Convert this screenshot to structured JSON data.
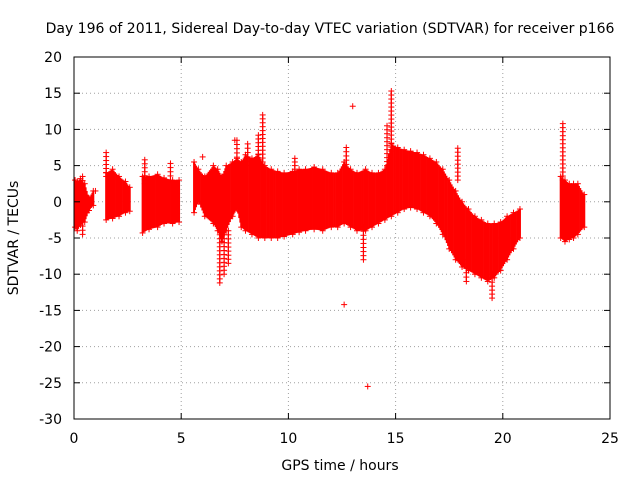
{
  "chart_data": {
    "type": "scatter",
    "title": "Day 196 of 2011, Sidereal Day-to-day VTEC variation (SDTVAR) for receiver p166",
    "xlabel": "GPS time / hours",
    "ylabel": "SDTVAR / TECUs",
    "xlim": [
      0,
      25
    ],
    "ylim": [
      -30,
      20
    ],
    "xticks": [
      0,
      5,
      10,
      15,
      20,
      25
    ],
    "yticks": [
      -30,
      -25,
      -20,
      -15,
      -10,
      -5,
      0,
      5,
      10,
      15,
      20
    ],
    "grid": true,
    "marker": "+",
    "series_color": "#ff0000",
    "band_envelope": [
      [
        0.05,
        -3.5,
        3.0
      ],
      [
        0.15,
        -4.0,
        2.8
      ],
      [
        0.3,
        -3.2,
        3.2
      ],
      [
        0.5,
        -2.8,
        2.5
      ],
      [
        0.7,
        -1.2,
        0.5
      ],
      [
        0.9,
        -0.5,
        1.5
      ],
      [
        1.5,
        -2.5,
        4.0
      ],
      [
        1.8,
        -2.3,
        4.5
      ],
      [
        2.1,
        -2.0,
        3.5
      ],
      [
        2.4,
        -1.5,
        2.8
      ],
      [
        2.6,
        -1.3,
        2.0
      ],
      [
        3.2,
        -4.3,
        3.5
      ],
      [
        3.5,
        -3.8,
        3.5
      ],
      [
        3.9,
        -3.5,
        3.8
      ],
      [
        4.2,
        -3.0,
        3.3
      ],
      [
        4.6,
        -3.0,
        3.0
      ],
      [
        4.9,
        -2.8,
        3.0
      ],
      [
        5.6,
        -1.5,
        5.5
      ],
      [
        5.8,
        0.0,
        4.5
      ],
      [
        6.1,
        -2.0,
        3.5
      ],
      [
        6.5,
        -3.0,
        5.0
      ],
      [
        6.7,
        -4.0,
        4.5
      ],
      [
        6.9,
        -5.5,
        3.5
      ],
      [
        7.1,
        -4.0,
        5.0
      ],
      [
        7.4,
        -2.0,
        5.5
      ],
      [
        7.6,
        -1.0,
        6.0
      ],
      [
        7.8,
        -3.5,
        5.5
      ],
      [
        8.0,
        -4.0,
        6.5
      ],
      [
        8.3,
        -4.5,
        6.0
      ],
      [
        8.6,
        -5.0,
        6.5
      ],
      [
        8.9,
        -5.0,
        5.0
      ],
      [
        9.2,
        -5.0,
        4.5
      ],
      [
        9.5,
        -5.0,
        4.2
      ],
      [
        9.8,
        -4.8,
        4.0
      ],
      [
        10.2,
        -4.5,
        4.2
      ],
      [
        10.5,
        -4.2,
        4.5
      ],
      [
        10.8,
        -4.0,
        4.5
      ],
      [
        11.2,
        -3.8,
        4.8
      ],
      [
        11.6,
        -4.0,
        4.5
      ],
      [
        12.0,
        -3.5,
        4.0
      ],
      [
        12.3,
        -3.5,
        4.0
      ],
      [
        12.6,
        -3.0,
        5.5
      ],
      [
        12.9,
        -3.5,
        4.5
      ],
      [
        13.2,
        -4.0,
        4.0
      ],
      [
        13.6,
        -4.0,
        4.5
      ],
      [
        13.9,
        -3.5,
        4.0
      ],
      [
        14.2,
        -3.0,
        4.0
      ],
      [
        14.5,
        -2.5,
        4.5
      ],
      [
        14.8,
        -2.0,
        8.0
      ],
      [
        15.1,
        -1.5,
        7.5
      ],
      [
        15.4,
        -1.0,
        7.2
      ],
      [
        15.7,
        -0.8,
        7.0
      ],
      [
        16.0,
        -1.0,
        6.8
      ],
      [
        16.3,
        -1.5,
        6.5
      ],
      [
        16.6,
        -2.0,
        6.0
      ],
      [
        16.9,
        -3.0,
        5.5
      ],
      [
        17.2,
        -4.5,
        4.5
      ],
      [
        17.5,
        -6.5,
        3.0
      ],
      [
        17.8,
        -8.0,
        1.5
      ],
      [
        18.1,
        -9.0,
        0.0
      ],
      [
        18.4,
        -9.5,
        -1.0
      ],
      [
        18.7,
        -10.0,
        -2.0
      ],
      [
        19.0,
        -10.5,
        -2.5
      ],
      [
        19.3,
        -11.0,
        -3.0
      ],
      [
        19.6,
        -10.5,
        -3.0
      ],
      [
        19.9,
        -9.5,
        -2.8
      ],
      [
        20.2,
        -8.0,
        -2.0
      ],
      [
        20.5,
        -6.5,
        -1.5
      ],
      [
        20.8,
        -5.0,
        -1.0
      ],
      [
        22.7,
        -5.0,
        3.5
      ],
      [
        22.9,
        -5.5,
        3.0
      ],
      [
        23.1,
        -5.2,
        2.5
      ],
      [
        23.3,
        -5.0,
        2.5
      ],
      [
        23.5,
        -4.5,
        2.5
      ],
      [
        23.8,
        -3.5,
        1.0
      ]
    ],
    "spikes": [
      [
        0.4,
        -4.5,
        3.5
      ],
      [
        1.5,
        3.5,
        6.8
      ],
      [
        3.3,
        2.5,
        5.8
      ],
      [
        4.5,
        3.0,
        5.3
      ],
      [
        6.8,
        -11.2,
        -4.0
      ],
      [
        7.0,
        -10.0,
        -4.0
      ],
      [
        7.2,
        -8.5,
        -4.0
      ],
      [
        7.6,
        5.0,
        8.5
      ],
      [
        8.1,
        5.0,
        8.0
      ],
      [
        8.8,
        5.5,
        12.0
      ],
      [
        8.6,
        4.5,
        9.2
      ],
      [
        10.3,
        4.0,
        6.0
      ],
      [
        12.7,
        4.0,
        7.5
      ],
      [
        13.5,
        -8.0,
        -3.5
      ],
      [
        14.8,
        7.0,
        15.3
      ],
      [
        14.6,
        5.0,
        10.5
      ],
      [
        17.9,
        3.0,
        7.4
      ],
      [
        18.3,
        -11.0,
        -8.0
      ],
      [
        19.5,
        -13.3,
        -10.0
      ],
      [
        22.8,
        3.0,
        10.8
      ]
    ],
    "outliers": [
      [
        12.6,
        -14.2
      ],
      [
        13.7,
        -25.5
      ],
      [
        13.0,
        13.2
      ],
      [
        0.6,
        -1.5
      ],
      [
        1.0,
        1.5
      ],
      [
        6.0,
        6.2
      ],
      [
        7.5,
        8.5
      ]
    ]
  }
}
